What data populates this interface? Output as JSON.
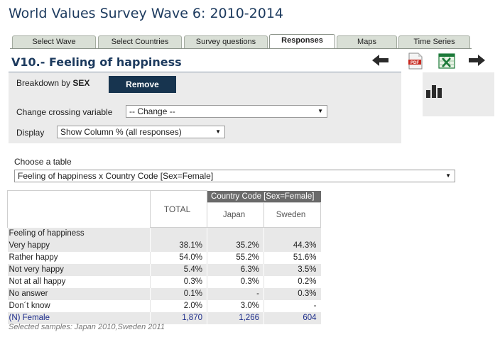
{
  "app": {
    "title": "World Values Survey Wave 6: 2010-2014"
  },
  "tabs": [
    {
      "label": "Select Wave",
      "active": false
    },
    {
      "label": "Select Countries",
      "active": false
    },
    {
      "label": "Survey questions",
      "active": false
    },
    {
      "label": "Responses",
      "active": true
    },
    {
      "label": "Maps",
      "active": false
    },
    {
      "label": "Time Series",
      "active": false
    }
  ],
  "question": {
    "title": "V10.- Feeling of happiness"
  },
  "toolbar": {
    "icons": [
      "arrow-left-icon",
      "pdf-icon",
      "excel-icon",
      "arrow-right-icon",
      "bar-chart-icon"
    ],
    "pdf_text": "PDF"
  },
  "breakdown": {
    "prefix": "Breakdown by",
    "variable": "SEX",
    "remove_label": "Remove"
  },
  "crossing": {
    "label": "Change crossing variable",
    "value": "-- Change --"
  },
  "display": {
    "label": "Display",
    "value": "Show Column % (all responses)"
  },
  "table_choice": {
    "label": "Choose a table",
    "value": "Feeling of happiness x Country Code [Sex=Female]"
  },
  "results": {
    "group_header": "Country Code [Sex=Female]",
    "total_header": "TOTAL",
    "countries": [
      "Japan",
      "Sweden"
    ],
    "variable_label": "Feeling of happiness",
    "rows": [
      {
        "label": "Very happy",
        "total": "38.1%",
        "japan": "35.2%",
        "sweden": "44.3%"
      },
      {
        "label": "Rather happy",
        "total": "54.0%",
        "japan": "55.2%",
        "sweden": "51.6%"
      },
      {
        "label": "Not very happy",
        "total": "5.4%",
        "japan": "6.3%",
        "sweden": "3.5%"
      },
      {
        "label": "Not at all happy",
        "total": "0.3%",
        "japan": "0.3%",
        "sweden": "0.2%"
      },
      {
        "label": "No answer",
        "total": "0.1%",
        "japan": "-",
        "sweden": "0.3%"
      },
      {
        "label": "Don´t know",
        "total": "2.0%",
        "japan": "3.0%",
        "sweden": "-"
      }
    ],
    "n_row": {
      "label": "(N) Female",
      "total": "1,870",
      "japan": "1,266",
      "sweden": "604"
    }
  },
  "footer": {
    "samples": "Selected samples: Japan 2010,Sweden 2011"
  },
  "colors": {
    "title": "#1c3a5e",
    "remove_button": "#17344f",
    "panel": "#ebebeb",
    "group_header": "#6a6a6a",
    "n_row_text": "#1c2c8a"
  }
}
